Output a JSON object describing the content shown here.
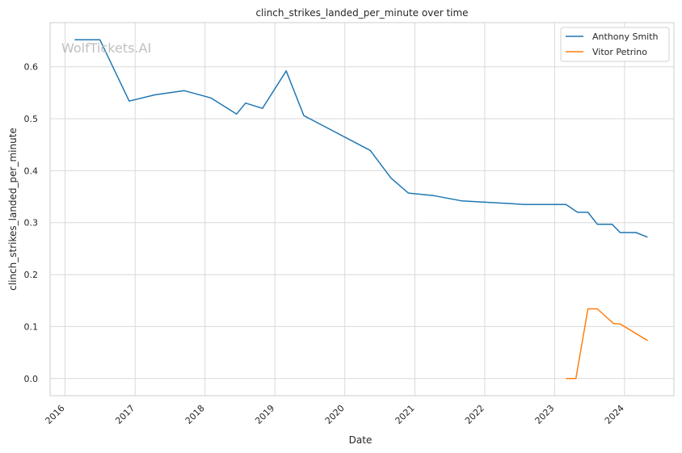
{
  "chart_data": {
    "type": "line",
    "title": "clinch_strikes_landed_per_minute over time",
    "xlabel": "Date",
    "ylabel": "clinch_strikes_landed_per_minute",
    "watermark": "WolfTickets.AI",
    "x_ticks": [
      "2016",
      "2017",
      "2018",
      "2019",
      "2020",
      "2021",
      "2022",
      "2023",
      "2024"
    ],
    "y_ticks": [
      "0.0",
      "0.1",
      "0.2",
      "0.3",
      "0.4",
      "0.5",
      "0.6"
    ],
    "xlim": [
      "2015-10-15",
      "2024-09-15"
    ],
    "ylim": [
      -0.033,
      0.685
    ],
    "grid": true,
    "legend_position": "top-right",
    "series": [
      {
        "name": "Anthony Smith",
        "color": "#1f77b4",
        "points": [
          [
            "2016-02-20",
            0.652
          ],
          [
            "2016-07-01",
            0.652
          ],
          [
            "2016-12-01",
            0.534
          ],
          [
            "2017-04-15",
            0.546
          ],
          [
            "2017-09-15",
            0.554
          ],
          [
            "2018-02-01",
            0.54
          ],
          [
            "2018-06-15",
            0.509
          ],
          [
            "2018-08-01",
            0.53
          ],
          [
            "2018-10-28",
            0.52
          ],
          [
            "2019-03-01",
            0.592
          ],
          [
            "2019-06-01",
            0.506
          ],
          [
            "2020-05-13",
            0.439
          ],
          [
            "2020-08-29",
            0.386
          ],
          [
            "2020-11-28",
            0.357
          ],
          [
            "2021-04-10",
            0.352
          ],
          [
            "2021-09-01",
            0.342
          ],
          [
            "2022-07-30",
            0.335
          ],
          [
            "2023-03-01",
            0.335
          ],
          [
            "2023-04-30",
            0.32
          ],
          [
            "2023-06-24",
            0.32
          ],
          [
            "2023-08-12",
            0.297
          ],
          [
            "2023-10-28",
            0.297
          ],
          [
            "2023-12-09",
            0.281
          ],
          [
            "2024-03-01",
            0.281
          ],
          [
            "2024-04-30",
            0.272
          ]
        ]
      },
      {
        "name": "Vitor Petrino",
        "color": "#ff7f0e",
        "points": [
          [
            "2023-03-01",
            0.0
          ],
          [
            "2023-04-22",
            0.0
          ],
          [
            "2023-06-24",
            0.134
          ],
          [
            "2023-08-12",
            0.134
          ],
          [
            "2023-11-04",
            0.106
          ],
          [
            "2023-12-09",
            0.105
          ],
          [
            "2024-05-01",
            0.073
          ]
        ]
      }
    ]
  }
}
